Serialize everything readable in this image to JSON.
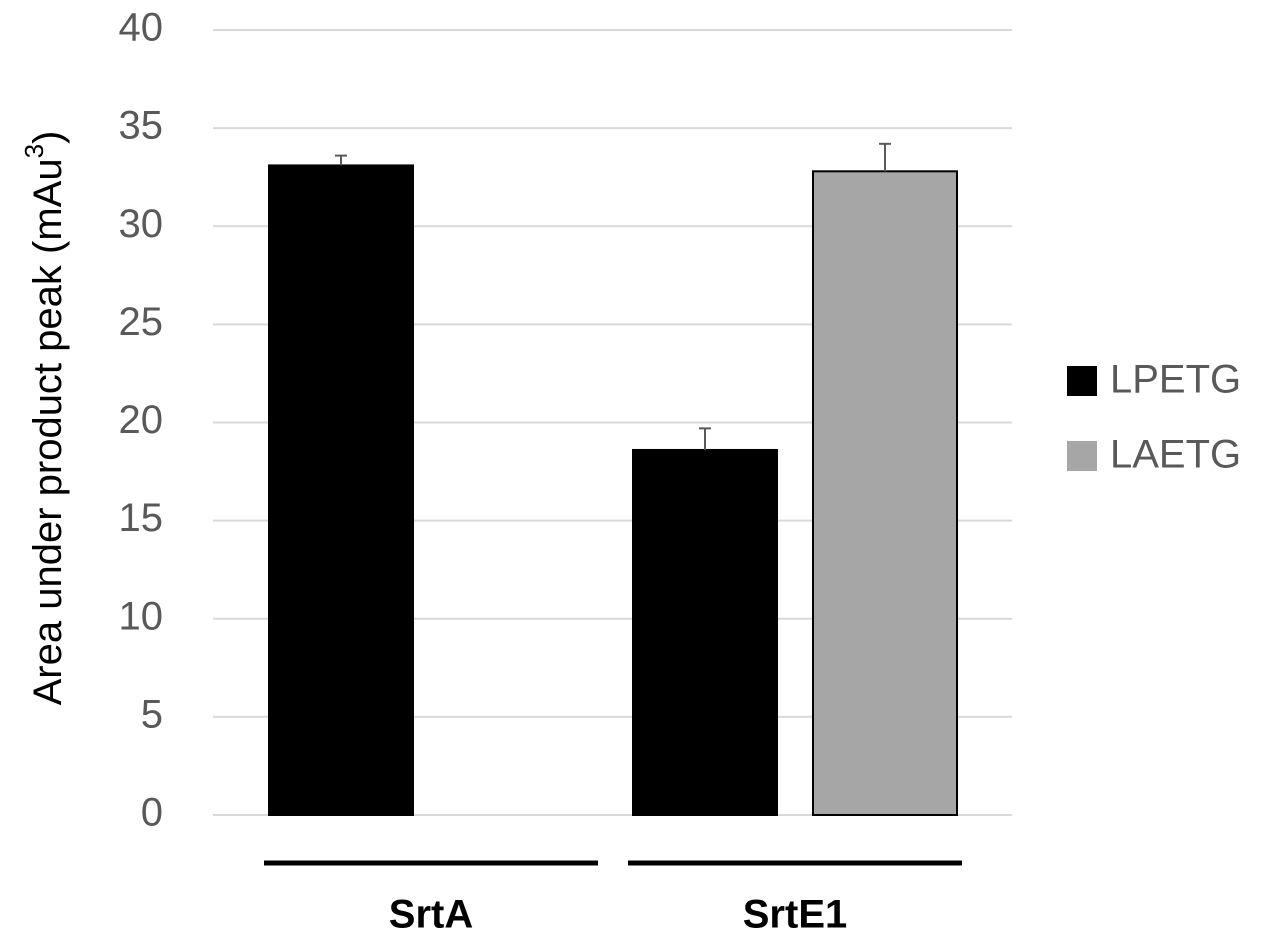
{
  "chart_data": {
    "type": "bar",
    "ylabel": "Area under product peak (mAu",
    "ylabel_superscript": "3",
    "ylabel_suffix": ")",
    "ylim": [
      0,
      40
    ],
    "yticks": [
      "0",
      "5",
      "10",
      "15",
      "20",
      "25",
      "30",
      "35",
      "40"
    ],
    "categories": [
      "SrtA",
      "SrtE1"
    ],
    "grid": true,
    "legend_position": "right",
    "series": [
      {
        "name": "LPETG",
        "color": "#000000",
        "values": [
          33.1,
          18.6
        ],
        "errors": [
          0.5,
          1.1
        ]
      },
      {
        "name": "LAETG",
        "color": "#a6a6a6",
        "values": [
          null,
          32.8
        ],
        "errors": [
          null,
          1.4
        ]
      }
    ]
  }
}
